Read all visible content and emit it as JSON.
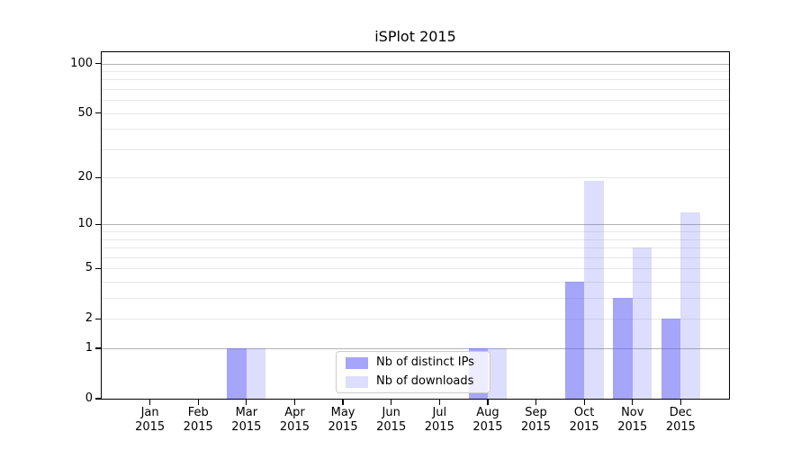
{
  "title": "iSPlot 2015",
  "chart_data": {
    "type": "bar",
    "title": "iSPlot 2015",
    "x_months": [
      "Jan",
      "Feb",
      "Mar",
      "Apr",
      "May",
      "Jun",
      "Jul",
      "Aug",
      "Sep",
      "Oct",
      "Nov",
      "Dec"
    ],
    "x_year": "2015",
    "categories": [
      "Jan 2015",
      "Feb 2015",
      "Mar 2015",
      "Apr 2015",
      "May 2015",
      "Jun 2015",
      "Jul 2015",
      "Aug 2015",
      "Sep 2015",
      "Oct 2015",
      "Nov 2015",
      "Dec 2015"
    ],
    "series": [
      {
        "name": "Nb of distinct IPs",
        "color": "rgba(100,100,245,0.58)",
        "values": [
          0,
          0,
          1,
          0,
          0,
          0,
          0,
          1,
          0,
          4,
          3,
          2
        ]
      },
      {
        "name": "Nb of downloads",
        "color": "rgba(100,100,245,0.22)",
        "values": [
          0,
          0,
          1,
          0,
          0,
          0,
          0,
          1,
          0,
          19,
          7,
          12
        ]
      }
    ],
    "yscale": "log1p",
    "ylim": [
      0,
      117
    ],
    "ytick_values": [
      0,
      1,
      2,
      5,
      10,
      20,
      50,
      100
    ],
    "ytick_labels": [
      "0",
      "1",
      "2",
      "5",
      "10",
      "20",
      "50",
      "100"
    ],
    "major_grid_values": [
      1,
      10,
      100
    ],
    "minor_grid_values": [
      2,
      3,
      4,
      5,
      6,
      7,
      8,
      9,
      20,
      30,
      40,
      50,
      60,
      70,
      80,
      90
    ],
    "grid": true,
    "legend_position": "lower center",
    "xlabel": "",
    "ylabel": ""
  },
  "colors": {
    "background": "#ffffff",
    "bar_dark": "rgba(100,100,245,0.58)",
    "bar_light": "rgba(100,100,245,0.22)",
    "major_grid": "#b2b2b2",
    "minor_grid": "#e8e8e8",
    "spine": "#000000",
    "legend_border": "#cccccc",
    "text": "#000000"
  }
}
